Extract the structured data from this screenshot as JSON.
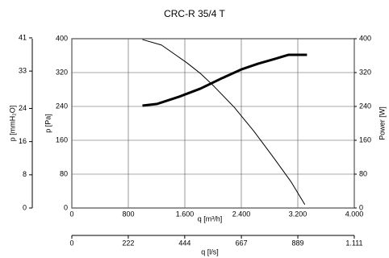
{
  "chart_data": {
    "type": "line",
    "title": "CRC-R 35/4 T",
    "xlabel": "q [m³/h]",
    "ylabel": "p [Pa]",
    "y2label": "Power [W]",
    "xlim": [
      0,
      4000
    ],
    "xticks": [
      0,
      800,
      {
        "value": 1600,
        "label": "1.600"
      },
      {
        "value": 2400,
        "label": "2.400"
      },
      {
        "value": 3200,
        "label": "3.200"
      },
      {
        "value": 4000,
        "label": "4.000"
      }
    ],
    "ylim": [
      0,
      400
    ],
    "yticks": [
      0,
      80,
      160,
      240,
      320,
      400
    ],
    "y2lim": [
      0,
      400
    ],
    "y2ticks": [
      0,
      80,
      160,
      240,
      320,
      400
    ],
    "y3label": "p [mmH₂O]",
    "y3lim": [
      0,
      40.8
    ],
    "y3ticks": [
      0,
      8,
      16,
      24,
      33,
      41
    ],
    "x2label": "q [l/s]",
    "x2lim": [
      0,
      1111.1
    ],
    "x2ticks": [
      0,
      222,
      444,
      667,
      889,
      {
        "value": 1111,
        "label": "1.111"
      }
    ],
    "grid": true,
    "series": [
      {
        "color": "#000000",
        "width": 1,
        "x": [
          1000,
          1270,
          1450,
          1630,
          1820,
          2010,
          2300,
          2580,
          2870,
          3100,
          3300
        ],
        "values": [
          398,
          385,
          364,
          343,
          318,
          288,
          238,
          181,
          116,
          63,
          8
        ]
      },
      {
        "color": "#000000",
        "width": 3,
        "axis": "y2",
        "x": [
          1000,
          1210,
          1520,
          1820,
          2130,
          2410,
          2640,
          2870,
          3070,
          3330
        ],
        "values": [
          242,
          246,
          263,
          282,
          307,
          328,
          341,
          352,
          362,
          362
        ]
      }
    ]
  }
}
